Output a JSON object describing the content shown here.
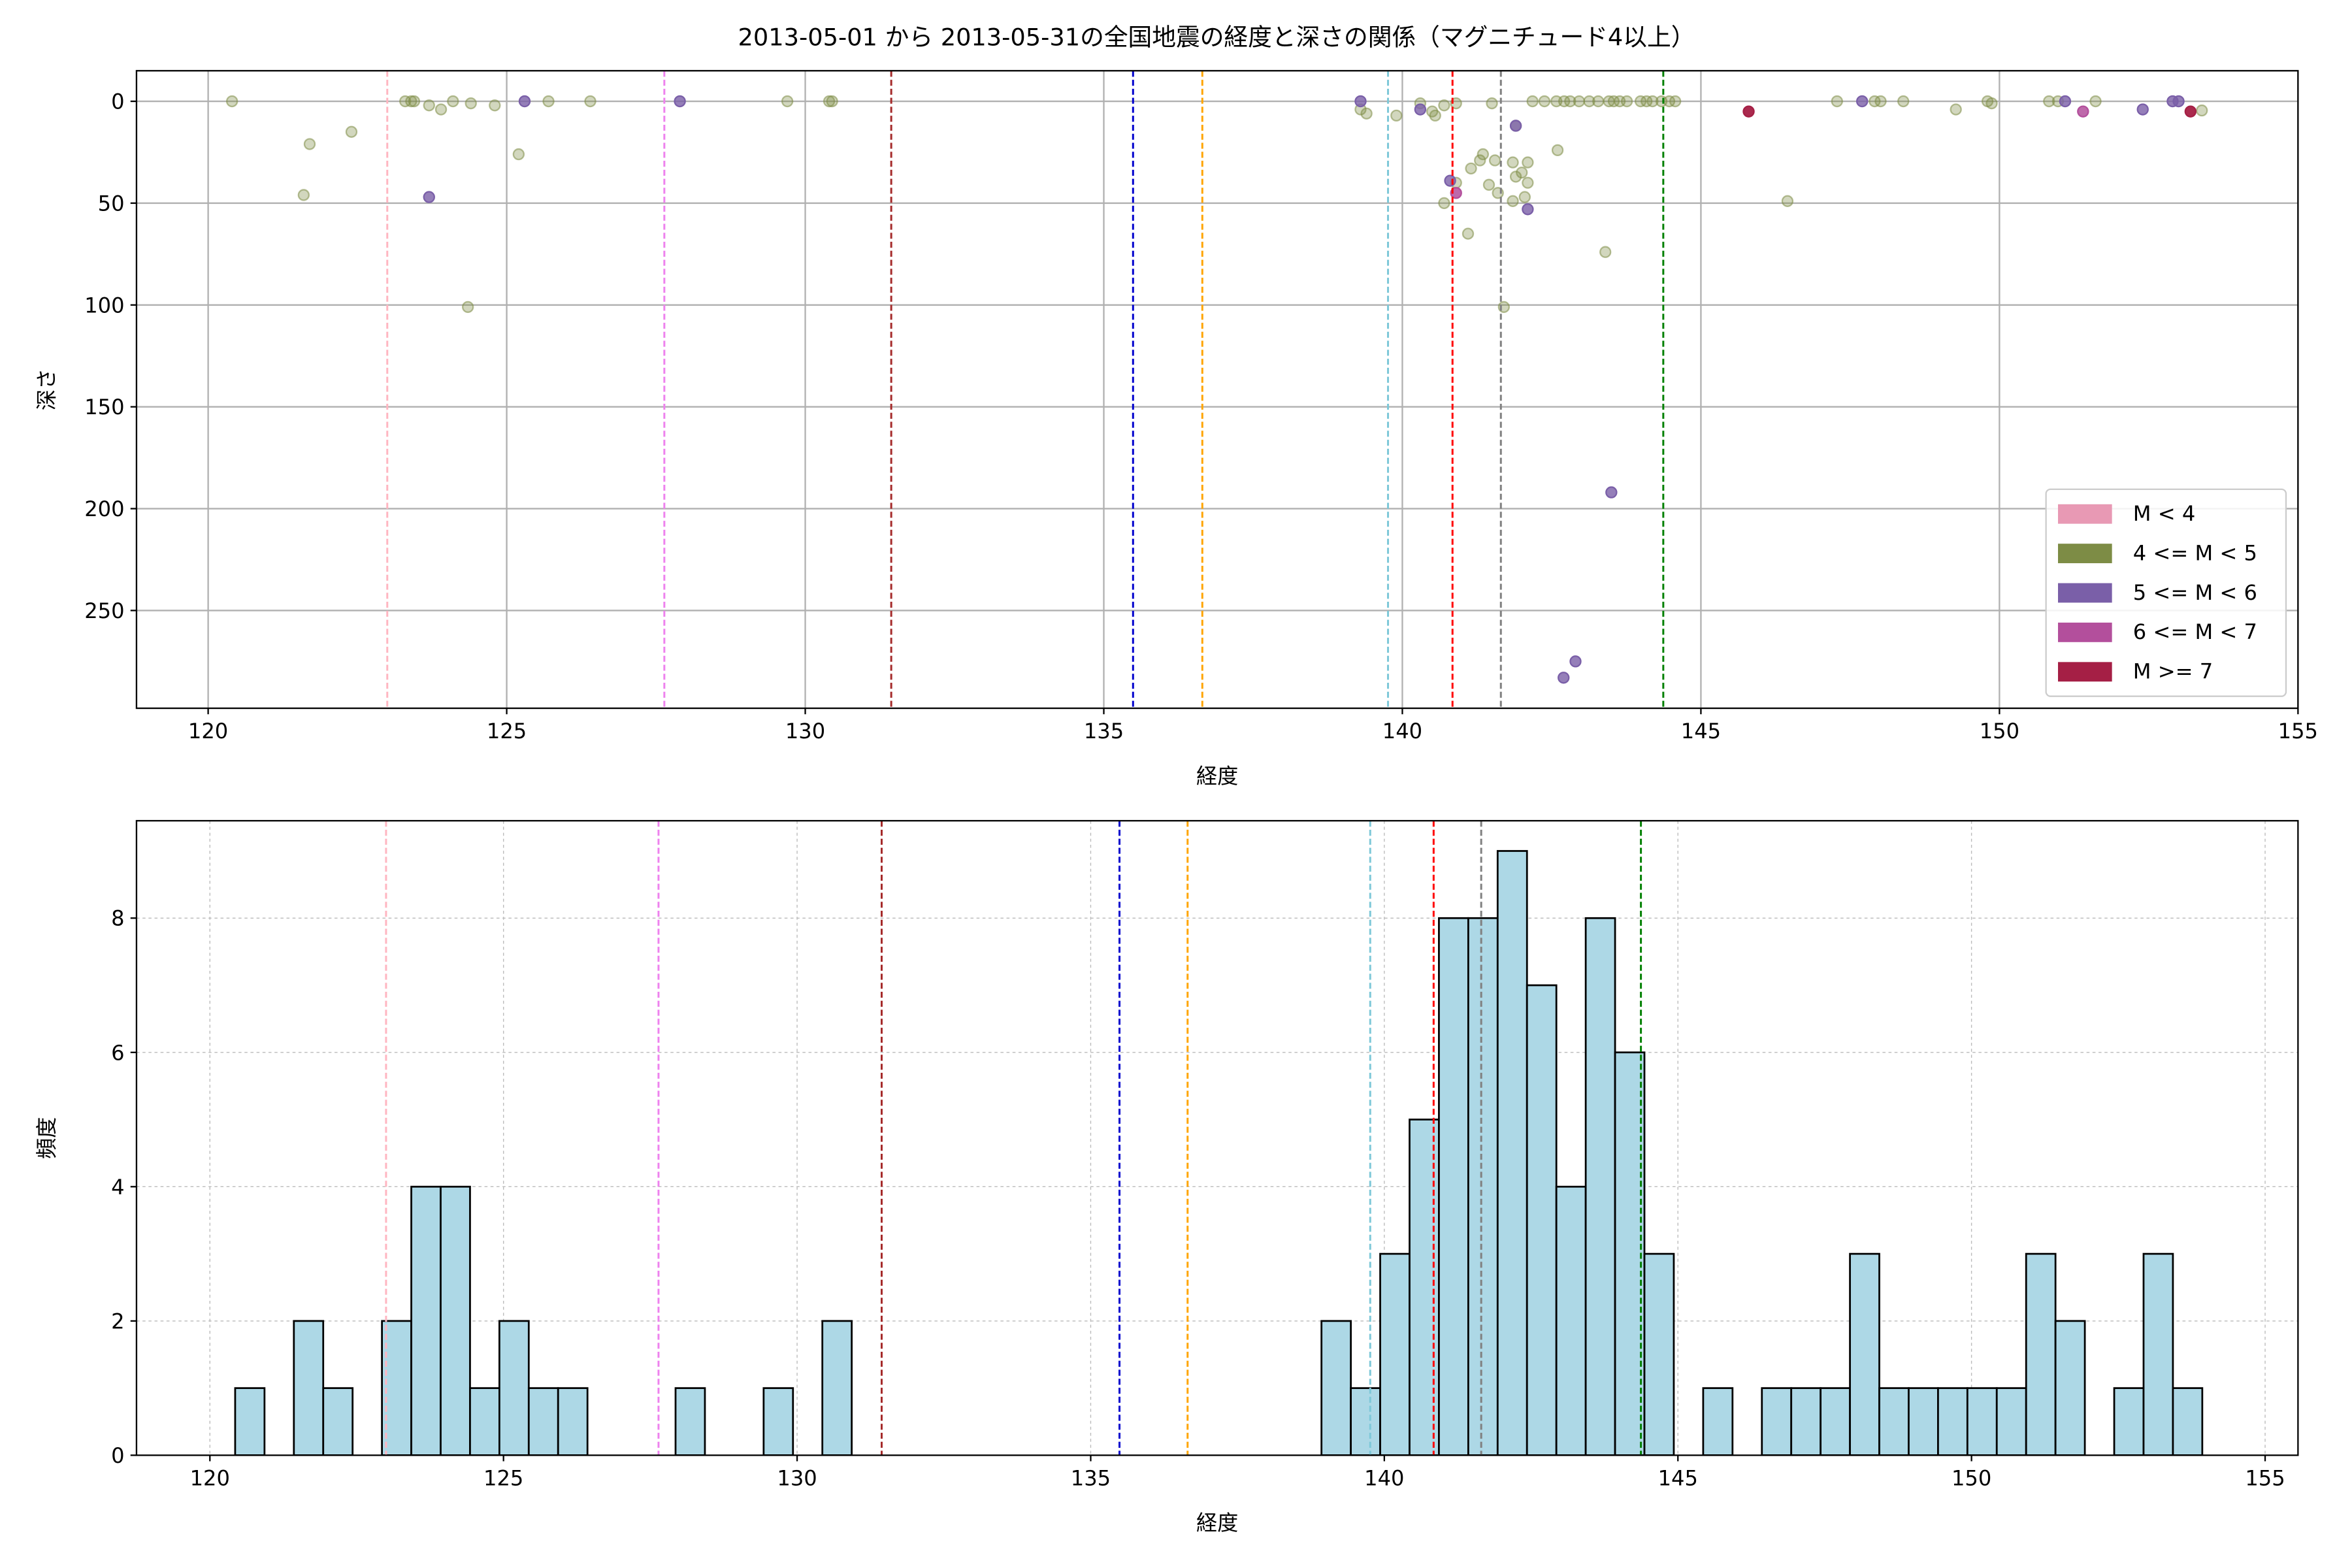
{
  "chart_data": [
    {
      "type": "scatter",
      "title": "2013-05-01 から 2013-05-31の全国地震の経度と深さの関係（マグニチュード4以上）",
      "x_label": "経度",
      "y_label": "深さ",
      "xlim": [
        118.8,
        155.0
      ],
      "ylim": [
        -15,
        298
      ],
      "y_inverted": true,
      "xticks": [
        120,
        125,
        130,
        135,
        140,
        145,
        150,
        155
      ],
      "yticks": [
        0,
        50,
        100,
        150,
        200,
        250
      ],
      "grid": "solid",
      "legend": "lower right",
      "reference_lines": [
        {
          "value": 123.0,
          "color": "#ffb6c1"
        },
        {
          "value": 127.64,
          "color": "#ee82ee"
        },
        {
          "value": 131.44,
          "color": "#a52a2a"
        },
        {
          "value": 135.49,
          "color": "#0000cd"
        },
        {
          "value": 136.65,
          "color": "#ffa500"
        },
        {
          "value": 139.76,
          "color": "#7ec8d8"
        },
        {
          "value": 140.84,
          "color": "#ff0000"
        },
        {
          "value": 141.65,
          "color": "#808080"
        },
        {
          "value": 144.37,
          "color": "#008000"
        }
      ],
      "series": [
        {
          "name": "M < 4",
          "color": "#e899b4",
          "alpha": 0.9,
          "x": [],
          "values": []
        },
        {
          "name": "4 <= M < 5",
          "color": "#7d8c45",
          "alpha": 0.35,
          "x": [
            120.4,
            121.7,
            121.6,
            122.4,
            123.3,
            123.4,
            123.45,
            123.7,
            123.9,
            124.1,
            124.4,
            124.8,
            124.35,
            125.2,
            125.7,
            126.4,
            129.7,
            130.4,
            130.45,
            139.3,
            139.4,
            139.9,
            140.3,
            140.5,
            140.55,
            140.7,
            140.9,
            141.5,
            140.7,
            140.9,
            141.1,
            141.15,
            141.3,
            141.35,
            141.45,
            141.55,
            141.6,
            141.7,
            141.85,
            141.85,
            141.9,
            142.0,
            142.1,
            142.1,
            142.05,
            141.9,
            142.18,
            142.38,
            142.58,
            142.71,
            142.81,
            142.96,
            143.13,
            143.28,
            143.46,
            143.54,
            143.64,
            143.76,
            143.99,
            144.09,
            144.19,
            144.34,
            144.47,
            144.57,
            142.6,
            143.4,
            146.45,
            147.28,
            147.91,
            148.01,
            148.39,
            149.27,
            149.8,
            149.87,
            150.83,
            150.98,
            151.61,
            153.39
          ],
          "values": [
            0,
            21,
            46,
            15,
            0,
            0,
            0,
            2,
            4,
            0,
            1,
            2,
            101,
            26,
            0,
            0,
            0,
            0,
            0,
            4,
            6,
            7,
            1,
            5,
            7,
            2,
            1,
            1,
            50,
            40,
            65,
            33,
            29,
            26,
            41,
            29,
            45,
            101,
            49,
            30,
            37,
            35,
            30,
            40,
            47,
            12,
            0,
            0,
            0,
            0,
            0,
            0,
            0,
            0,
            0,
            0,
            0,
            0,
            0,
            0,
            0,
            0,
            0,
            0,
            24,
            74,
            49,
            0,
            0,
            0,
            0,
            4,
            0,
            1,
            0,
            0,
            0,
            4.5
          ]
        },
        {
          "name": "5 <= M < 6",
          "color": "#7a5fa8",
          "alpha": 0.8,
          "x": [
            123.7,
            125.3,
            127.9,
            139.3,
            140.3,
            140.8,
            142.1,
            143.5,
            142.9,
            142.7,
            147.7,
            151.1,
            152.4,
            152.9,
            153.0,
            141.9
          ],
          "values": [
            47,
            0,
            0,
            0,
            4,
            39,
            53,
            192,
            275,
            283,
            0,
            0,
            4,
            0,
            0,
            12
          ]
        },
        {
          "name": "6 <= M < 7",
          "color": "#b34f9c",
          "alpha": 0.85,
          "x": [
            140.9,
            151.4
          ],
          "values": [
            45,
            5
          ]
        },
        {
          "name": "M >= 7",
          "color": "#a51f45",
          "alpha": 0.95,
          "x": [
            145.8,
            153.2
          ],
          "values": [
            5,
            5
          ]
        }
      ]
    },
    {
      "type": "histogram",
      "x_label": "経度",
      "y_label": "頻度",
      "xlim": [
        118.75,
        155.56
      ],
      "ylim": [
        0,
        9.45
      ],
      "xticks": [
        120,
        125,
        130,
        135,
        140,
        145,
        150,
        155
      ],
      "yticks": [
        0,
        2,
        4,
        6,
        8
      ],
      "grid": "dotted",
      "color": "#add8e6",
      "reference_lines": [
        {
          "value": 123.0,
          "color": "#ffb6c1"
        },
        {
          "value": 127.64,
          "color": "#ee82ee"
        },
        {
          "value": 131.44,
          "color": "#a52a2a"
        },
        {
          "value": 135.49,
          "color": "#0000cd"
        },
        {
          "value": 136.65,
          "color": "#ffa500"
        },
        {
          "value": 139.76,
          "color": "#7ec8d8"
        },
        {
          "value": 140.84,
          "color": "#ff0000"
        },
        {
          "value": 141.65,
          "color": "#808080"
        },
        {
          "value": 144.37,
          "color": "#008000"
        }
      ],
      "bins": [
        120.43,
        120.93,
        121.43,
        121.93,
        122.43,
        122.93,
        123.43,
        123.93,
        124.43,
        124.93,
        125.43,
        125.93,
        126.43,
        126.93,
        127.43,
        127.93,
        128.43,
        128.93,
        129.43,
        129.93,
        130.43,
        130.93,
        131.43,
        131.93,
        132.43,
        132.93,
        133.43,
        133.93,
        134.43,
        134.93,
        135.43,
        135.93,
        136.43,
        136.93,
        137.43,
        137.93,
        138.43,
        138.93,
        139.43,
        139.93,
        140.43,
        140.93,
        141.43,
        141.93,
        142.43,
        142.93,
        143.43,
        143.93,
        144.43,
        144.93,
        145.43,
        145.93,
        146.43,
        146.93,
        147.43,
        147.93,
        148.43,
        148.93,
        149.43,
        149.93,
        150.43,
        150.93,
        151.43,
        151.93,
        152.43,
        152.93,
        153.43,
        153.93
      ],
      "values": [
        1,
        0,
        2,
        1,
        0,
        2,
        4,
        4,
        1,
        2,
        1,
        1,
        0,
        0,
        0,
        1,
        0,
        0,
        1,
        0,
        2,
        0,
        0,
        0,
        0,
        0,
        0,
        0,
        0,
        0,
        0,
        0,
        0,
        0,
        0,
        0,
        0,
        2,
        1,
        3,
        5,
        8,
        8,
        9,
        7,
        4,
        8,
        6,
        3,
        0,
        1,
        0,
        1,
        1,
        1,
        3,
        1,
        1,
        1,
        1,
        1,
        3,
        2,
        0,
        1,
        3,
        1
      ]
    }
  ]
}
